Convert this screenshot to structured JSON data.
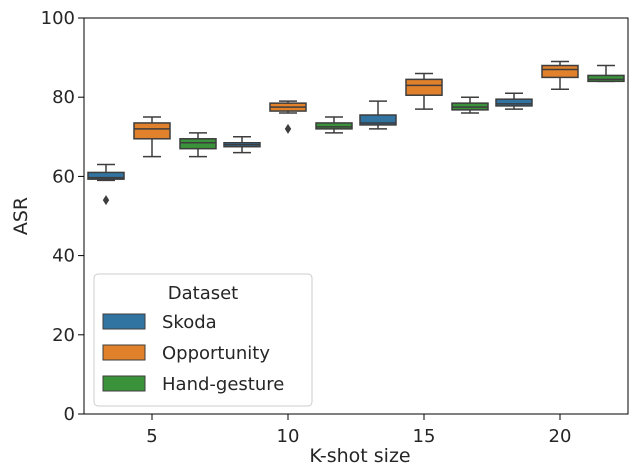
{
  "chart_data": {
    "type": "box",
    "xlabel": "K-shot size",
    "ylabel": "ASR",
    "ylim": [
      0,
      100
    ],
    "yticks": [
      0,
      20,
      40,
      60,
      80,
      100
    ],
    "categories": [
      "5",
      "10",
      "15",
      "20"
    ],
    "grid": false,
    "legend": {
      "title": "Dataset",
      "placement": "lower-left"
    },
    "series": [
      {
        "name": "Skoda",
        "color": "#3274a1",
        "boxes": [
          {
            "min": 59,
            "q1": 59.3,
            "median": 59.7,
            "q3": 61,
            "max": 63,
            "outliers": [
              54
            ]
          },
          {
            "min": 66,
            "q1": 67.5,
            "median": 68,
            "q3": 68.5,
            "max": 70,
            "outliers": []
          },
          {
            "min": 72,
            "q1": 73,
            "median": 73.5,
            "q3": 75.5,
            "max": 79,
            "outliers": []
          },
          {
            "min": 77,
            "q1": 77.8,
            "median": 78.3,
            "q3": 79.5,
            "max": 81,
            "outliers": []
          }
        ]
      },
      {
        "name": "Opportunity",
        "color": "#e1812c",
        "boxes": [
          {
            "min": 65,
            "q1": 69.5,
            "median": 72,
            "q3": 73.5,
            "max": 75,
            "outliers": []
          },
          {
            "min": 76,
            "q1": 76.5,
            "median": 77.5,
            "q3": 78.5,
            "max": 79,
            "outliers": [
              72
            ]
          },
          {
            "min": 77,
            "q1": 80.5,
            "median": 83,
            "q3": 84.5,
            "max": 86,
            "outliers": []
          },
          {
            "min": 82,
            "q1": 85,
            "median": 87,
            "q3": 88,
            "max": 89,
            "outliers": []
          }
        ]
      },
      {
        "name": "Hand-gesture",
        "color": "#3a923a",
        "boxes": [
          {
            "min": 65,
            "q1": 67,
            "median": 68.5,
            "q3": 69.5,
            "max": 71,
            "outliers": []
          },
          {
            "min": 71,
            "q1": 72,
            "median": 72.5,
            "q3": 73.5,
            "max": 75,
            "outliers": []
          },
          {
            "min": 76,
            "q1": 76.8,
            "median": 77.5,
            "q3": 78.5,
            "max": 80,
            "outliers": []
          },
          {
            "min": 84,
            "q1": 84,
            "median": 84.5,
            "q3": 85.5,
            "max": 88,
            "outliers": []
          }
        ]
      }
    ]
  }
}
